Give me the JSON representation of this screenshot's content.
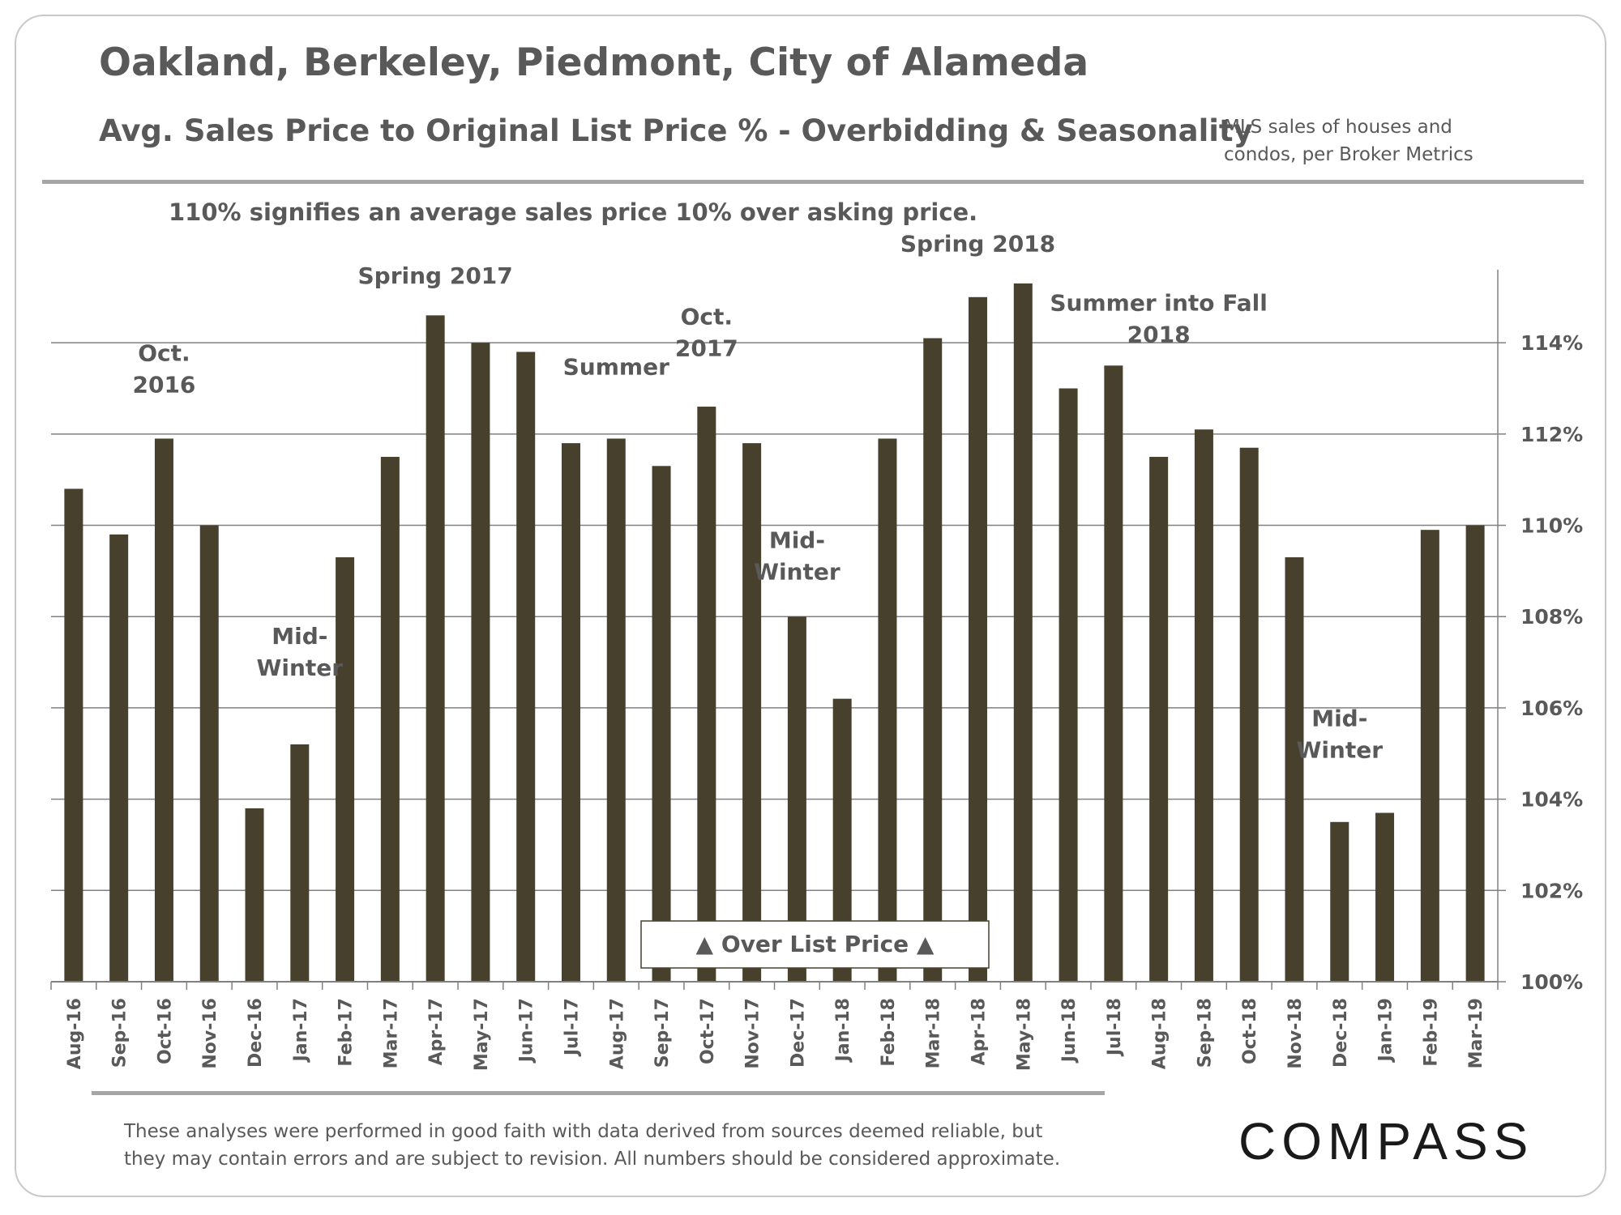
{
  "header": {
    "title": "Oakland, Berkeley, Piedmont, City of Alameda",
    "subtitle": "Avg. Sales Price to Original  List Price % - Overbidding  & Seasonality",
    "source_line1": "MLS sales of houses and",
    "source_line2": "condos, per Broker Metrics",
    "note": "110% signifies an average sales price 10% over asking price."
  },
  "footer": {
    "disclaimer_line1": "These analyses were performed in good faith with data derived from sources deemed reliable, but",
    "disclaimer_line2": "they may contain errors and are subject to revision. All numbers should be considered  approximate.",
    "logo": "COMPASS"
  },
  "colors": {
    "bar": "#47402d",
    "grid": "#808080",
    "text": "#595959",
    "rule": "#a6a6a6"
  },
  "chart_data": {
    "type": "bar",
    "categories": [
      "Aug-16",
      "Sep-16",
      "Oct-16",
      "Nov-16",
      "Dec-16",
      "Jan-17",
      "Feb-17",
      "Mar-17",
      "Apr-17",
      "May-17",
      "Jun-17",
      "Jul-17",
      "Aug-17",
      "Sep-17",
      "Oct-17",
      "Nov-17",
      "Dec-17",
      "Jan-18",
      "Feb-18",
      "Mar-18",
      "Apr-18",
      "May-18",
      "Jun-18",
      "Jul-18",
      "Aug-18",
      "Sep-18",
      "Oct-18",
      "Nov-18",
      "Dec-18",
      "Jan-19",
      "Feb-19",
      "Mar-19"
    ],
    "values": [
      110.8,
      109.8,
      111.9,
      110.0,
      103.8,
      105.2,
      109.3,
      111.5,
      114.6,
      114.0,
      113.8,
      111.8,
      111.9,
      111.3,
      112.6,
      111.8,
      108.0,
      106.2,
      111.9,
      114.1,
      115.0,
      115.3,
      113.0,
      113.5,
      111.5,
      112.1,
      111.7,
      109.3,
      103.5,
      103.7,
      109.9,
      110.0
    ],
    "ylim": [
      100,
      115.6
    ],
    "yticks": [
      100,
      102,
      104,
      106,
      108,
      110,
      112,
      114
    ],
    "ytick_labels": [
      "100%",
      "102%",
      "104%",
      "106%",
      "108%",
      "110%",
      "112%",
      "114%"
    ],
    "grid": true,
    "y_axis_side": "right",
    "legend_box": "▲ Over List Price ▲",
    "annotations": [
      {
        "lines": [
          "Oct.",
          "2016"
        ],
        "category": "Oct-16",
        "value": 113.6
      },
      {
        "lines": [
          "Mid-",
          "Winter"
        ],
        "category": "Jan-17",
        "value": 107.4
      },
      {
        "lines": [
          "Spring 2017"
        ],
        "category": "Apr-17",
        "value": 115.3
      },
      {
        "lines": [
          "Summer"
        ],
        "category": "Aug-17",
        "value": 113.3
      },
      {
        "lines": [
          "Oct.",
          "2017"
        ],
        "category": "Oct-17",
        "value": 114.4
      },
      {
        "lines": [
          "Mid-",
          "Winter"
        ],
        "category": "Dec-17",
        "value": 109.5
      },
      {
        "lines": [
          "Spring 2018"
        ],
        "category": "Apr-18",
        "value": 116.0
      },
      {
        "lines": [
          "Summer into Fall",
          "2018"
        ],
        "category": "Aug-18",
        "value": 114.7
      },
      {
        "lines": [
          "Mid-",
          "Winter"
        ],
        "category": "Dec-18",
        "value": 105.6
      }
    ]
  }
}
